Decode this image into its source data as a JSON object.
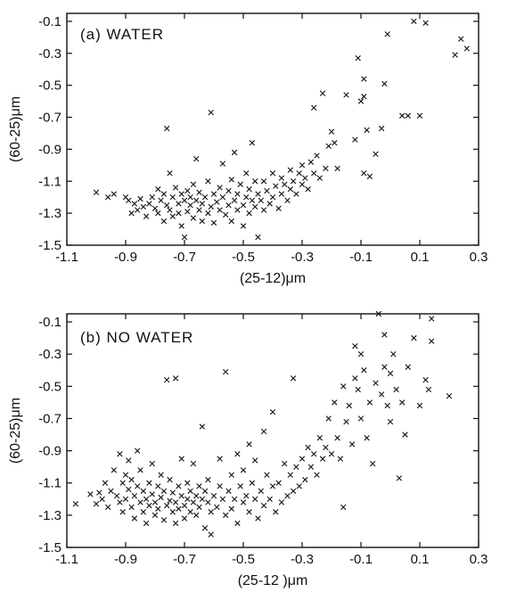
{
  "chart_data": [
    {
      "type": "scatter",
      "panel_label": "(a)  WATER",
      "xlabel": "(25-12)μm",
      "ylabel": "(60-25)μm",
      "xlim": [
        -1.1,
        0.3
      ],
      "ylim": [
        -1.5,
        -0.05
      ],
      "xticks": [
        -1.1,
        -0.9,
        -0.7,
        -0.5,
        -0.3,
        -0.1,
        0.1,
        0.3
      ],
      "xtick_labels": [
        "-1.1",
        "-0.9",
        "-0.7",
        "-0.5",
        "-0.3",
        "-0.1",
        "0.1",
        "0.3"
      ],
      "yticks": [
        -1.5,
        -1.3,
        -1.1,
        -0.9,
        -0.7,
        -0.5,
        -0.3,
        -0.1
      ],
      "ytick_labels": [
        "-1.5",
        "-1.3",
        "-1.1",
        "-0.9",
        "-0.7",
        "-0.5",
        "-0.3",
        "-0.1"
      ],
      "marker": "x",
      "grid": false,
      "points": [
        [
          -1.0,
          -1.17
        ],
        [
          -0.96,
          -1.2
        ],
        [
          -0.94,
          -1.18
        ],
        [
          -0.9,
          -1.2
        ],
        [
          -0.89,
          -1.22
        ],
        [
          -0.88,
          -1.3
        ],
        [
          -0.87,
          -1.24
        ],
        [
          -0.86,
          -1.28
        ],
        [
          -0.85,
          -1.21
        ],
        [
          -0.84,
          -1.26
        ],
        [
          -0.83,
          -1.32
        ],
        [
          -0.82,
          -1.24
        ],
        [
          -0.81,
          -1.2
        ],
        [
          -0.8,
          -1.27
        ],
        [
          -0.79,
          -1.15
        ],
        [
          -0.79,
          -1.3
        ],
        [
          -0.78,
          -1.22
        ],
        [
          -0.77,
          -1.18
        ],
        [
          -0.77,
          -1.35
        ],
        [
          -0.76,
          -1.25
        ],
        [
          -0.76,
          -0.77
        ],
        [
          -0.75,
          -1.28
        ],
        [
          -0.75,
          -1.05
        ],
        [
          -0.74,
          -1.2
        ],
        [
          -0.74,
          -1.32
        ],
        [
          -0.73,
          -1.14
        ],
        [
          -0.72,
          -1.24
        ],
        [
          -0.72,
          -1.3
        ],
        [
          -0.71,
          -1.18
        ],
        [
          -0.71,
          -1.38
        ],
        [
          -0.7,
          -1.22
        ],
        [
          -0.7,
          -1.45
        ],
        [
          -0.69,
          -1.16
        ],
        [
          -0.69,
          -1.29
        ],
        [
          -0.68,
          -1.25
        ],
        [
          -0.68,
          -1.2
        ],
        [
          -0.67,
          -1.12
        ],
        [
          -0.67,
          -1.33
        ],
        [
          -0.66,
          -1.22
        ],
        [
          -0.66,
          -0.96
        ],
        [
          -0.65,
          -1.28
        ],
        [
          -0.65,
          -1.17
        ],
        [
          -0.64,
          -1.24
        ],
        [
          -0.64,
          -1.35
        ],
        [
          -0.63,
          -1.2
        ],
        [
          -0.62,
          -1.1
        ],
        [
          -0.62,
          -1.3
        ],
        [
          -0.61,
          -1.26
        ],
        [
          -0.61,
          -0.67
        ],
        [
          -0.6,
          -1.18
        ],
        [
          -0.6,
          -1.36
        ],
        [
          -0.59,
          -1.23
        ],
        [
          -0.58,
          -1.14
        ],
        [
          -0.58,
          -1.28
        ],
        [
          -0.57,
          -1.2
        ],
        [
          -0.57,
          -0.99
        ],
        [
          -0.56,
          -1.31
        ],
        [
          -0.55,
          -1.25
        ],
        [
          -0.55,
          -1.16
        ],
        [
          -0.54,
          -1.09
        ],
        [
          -0.54,
          -1.35
        ],
        [
          -0.53,
          -1.22
        ],
        [
          -0.53,
          -0.92
        ],
        [
          -0.52,
          -1.28
        ],
        [
          -0.52,
          -1.18
        ],
        [
          -0.51,
          -1.12
        ],
        [
          -0.5,
          -1.25
        ],
        [
          -0.5,
          -1.38
        ],
        [
          -0.49,
          -1.2
        ],
        [
          -0.49,
          -1.05
        ],
        [
          -0.48,
          -1.3
        ],
        [
          -0.48,
          -1.15
        ],
        [
          -0.47,
          -1.22
        ],
        [
          -0.47,
          -0.86
        ],
        [
          -0.46,
          -1.1
        ],
        [
          -0.46,
          -1.26
        ],
        [
          -0.45,
          -1.45
        ],
        [
          -0.45,
          -1.18
        ],
        [
          -0.44,
          -1.22
        ],
        [
          -0.43,
          -1.1
        ],
        [
          -0.43,
          -1.28
        ],
        [
          -0.42,
          -1.16
        ],
        [
          -0.41,
          -1.24
        ],
        [
          -0.4,
          -1.05
        ],
        [
          -0.4,
          -1.2
        ],
        [
          -0.39,
          -1.13
        ],
        [
          -0.38,
          -1.27
        ],
        [
          -0.37,
          -1.08
        ],
        [
          -0.37,
          -1.18
        ],
        [
          -0.36,
          -1.12
        ],
        [
          -0.35,
          -1.22
        ],
        [
          -0.34,
          -1.03
        ],
        [
          -0.34,
          -1.15
        ],
        [
          -0.33,
          -1.1
        ],
        [
          -0.32,
          -1.18
        ],
        [
          -0.31,
          -1.05
        ],
        [
          -0.3,
          -1.12
        ],
        [
          -0.3,
          -1.0
        ],
        [
          -0.29,
          -1.08
        ],
        [
          -0.28,
          -1.15
        ],
        [
          -0.27,
          -0.98
        ],
        [
          -0.26,
          -1.05
        ],
        [
          -0.26,
          -0.64
        ],
        [
          -0.25,
          -0.94
        ],
        [
          -0.24,
          -1.08
        ],
        [
          -0.23,
          -0.55
        ],
        [
          -0.22,
          -1.02
        ],
        [
          -0.21,
          -0.88
        ],
        [
          -0.2,
          -0.79
        ],
        [
          -0.19,
          -0.86
        ],
        [
          -0.18,
          -1.02
        ],
        [
          -0.15,
          -0.56
        ],
        [
          -0.12,
          -0.84
        ],
        [
          -0.11,
          -0.33
        ],
        [
          -0.1,
          -0.6
        ],
        [
          -0.09,
          -0.46
        ],
        [
          -0.09,
          -0.57
        ],
        [
          -0.09,
          -1.05
        ],
        [
          -0.08,
          -0.78
        ],
        [
          -0.07,
          -1.07
        ],
        [
          -0.05,
          -0.93
        ],
        [
          -0.03,
          -0.77
        ],
        [
          -0.02,
          -0.49
        ],
        [
          -0.01,
          -0.18
        ],
        [
          0.04,
          -0.69
        ],
        [
          0.06,
          -0.69
        ],
        [
          0.08,
          -0.1
        ],
        [
          0.1,
          -0.69
        ],
        [
          0.12,
          -0.11
        ],
        [
          0.22,
          -0.31
        ],
        [
          0.24,
          -0.21
        ],
        [
          0.26,
          -0.27
        ]
      ]
    },
    {
      "type": "scatter",
      "panel_label": "(b)  NO WATER",
      "xlabel": "(25-12 )μm",
      "ylabel": "(60-25)μm",
      "xlim": [
        -1.1,
        0.3
      ],
      "ylim": [
        -1.5,
        -0.05
      ],
      "xticks": [
        -1.1,
        -0.9,
        -0.7,
        -0.5,
        -0.3,
        -0.1,
        0.1,
        0.3
      ],
      "xtick_labels": [
        "-1.1",
        "-0.9",
        "-0.7",
        "-0.5",
        "-0.3",
        "-0.1",
        "0.1",
        "0.3"
      ],
      "yticks": [
        -1.5,
        -1.3,
        -1.1,
        -0.9,
        -0.7,
        -0.5,
        -0.3,
        -0.1
      ],
      "ytick_labels": [
        "-1.5",
        "-1.3",
        "-1.1",
        "-0.9",
        "-0.7",
        "-0.5",
        "-0.3",
        "-0.1"
      ],
      "marker": "x",
      "grid": false,
      "points": [
        [
          -1.07,
          -1.23
        ],
        [
          -1.02,
          -1.17
        ],
        [
          -1.0,
          -1.23
        ],
        [
          -0.99,
          -1.16
        ],
        [
          -0.98,
          -1.2
        ],
        [
          -0.97,
          -1.1
        ],
        [
          -0.96,
          -1.25
        ],
        [
          -0.95,
          -1.15
        ],
        [
          -0.94,
          -1.02
        ],
        [
          -0.93,
          -1.18
        ],
        [
          -0.92,
          -0.92
        ],
        [
          -0.92,
          -1.22
        ],
        [
          -0.91,
          -1.1
        ],
        [
          -0.91,
          -1.28
        ],
        [
          -0.9,
          -1.05
        ],
        [
          -0.9,
          -1.2
        ],
        [
          -0.89,
          -0.96
        ],
        [
          -0.89,
          -1.14
        ],
        [
          -0.88,
          -1.25
        ],
        [
          -0.88,
          -1.08
        ],
        [
          -0.87,
          -1.18
        ],
        [
          -0.87,
          -1.32
        ],
        [
          -0.86,
          -1.12
        ],
        [
          -0.86,
          -0.9
        ],
        [
          -0.85,
          -1.22
        ],
        [
          -0.85,
          -1.02
        ],
        [
          -0.84,
          -1.28
        ],
        [
          -0.84,
          -1.15
        ],
        [
          -0.83,
          -1.2
        ],
        [
          -0.83,
          -1.35
        ],
        [
          -0.82,
          -1.1
        ],
        [
          -0.82,
          -1.24
        ],
        [
          -0.81,
          -1.17
        ],
        [
          -0.81,
          -0.98
        ],
        [
          -0.8,
          -1.3
        ],
        [
          -0.8,
          -1.22
        ],
        [
          -0.79,
          -1.12
        ],
        [
          -0.79,
          -1.26
        ],
        [
          -0.78,
          -1.19
        ],
        [
          -0.78,
          -1.05
        ],
        [
          -0.77,
          -1.33
        ],
        [
          -0.77,
          -1.15
        ],
        [
          -0.76,
          -1.24
        ],
        [
          -0.76,
          -0.46
        ],
        [
          -0.75,
          -1.21
        ],
        [
          -0.75,
          -1.08
        ],
        [
          -0.74,
          -1.28
        ],
        [
          -0.74,
          -1.16
        ],
        [
          -0.73,
          -1.22
        ],
        [
          -0.73,
          -1.35
        ],
        [
          -0.73,
          -0.45
        ],
        [
          -0.72,
          -1.12
        ],
        [
          -0.72,
          -1.26
        ],
        [
          -0.71,
          -1.18
        ],
        [
          -0.71,
          -0.95
        ],
        [
          -0.7,
          -1.24
        ],
        [
          -0.7,
          -1.32
        ],
        [
          -0.69,
          -1.1
        ],
        [
          -0.69,
          -1.2
        ],
        [
          -0.68,
          -1.28
        ],
        [
          -0.68,
          -1.15
        ],
        [
          -0.67,
          -1.22
        ],
        [
          -0.67,
          -0.98
        ],
        [
          -0.66,
          -1.3
        ],
        [
          -0.66,
          -1.18
        ],
        [
          -0.65,
          -1.12
        ],
        [
          -0.65,
          -1.25
        ],
        [
          -0.64,
          -1.2
        ],
        [
          -0.64,
          -0.75
        ],
        [
          -0.63,
          -1.38
        ],
        [
          -0.63,
          -1.15
        ],
        [
          -0.62,
          -1.22
        ],
        [
          -0.62,
          -1.08
        ],
        [
          -0.61,
          -1.28
        ],
        [
          -0.61,
          -1.42
        ],
        [
          -0.6,
          -1.18
        ],
        [
          -0.59,
          -1.25
        ],
        [
          -0.58,
          -1.12
        ],
        [
          -0.58,
          -0.95
        ],
        [
          -0.57,
          -1.2
        ],
        [
          -0.56,
          -0.41
        ],
        [
          -0.56,
          -1.3
        ],
        [
          -0.55,
          -1.15
        ],
        [
          -0.54,
          -1.05
        ],
        [
          -0.54,
          -1.26
        ],
        [
          -0.53,
          -1.2
        ],
        [
          -0.52,
          -0.92
        ],
        [
          -0.52,
          -1.35
        ],
        [
          -0.51,
          -1.12
        ],
        [
          -0.5,
          -1.22
        ],
        [
          -0.5,
          -1.02
        ],
        [
          -0.49,
          -1.18
        ],
        [
          -0.48,
          -0.86
        ],
        [
          -0.48,
          -1.28
        ],
        [
          -0.47,
          -1.1
        ],
        [
          -0.46,
          -1.2
        ],
        [
          -0.46,
          -0.96
        ],
        [
          -0.45,
          -1.32
        ],
        [
          -0.44,
          -1.15
        ],
        [
          -0.43,
          -0.78
        ],
        [
          -0.43,
          -1.24
        ],
        [
          -0.42,
          -1.05
        ],
        [
          -0.41,
          -1.2
        ],
        [
          -0.4,
          -1.12
        ],
        [
          -0.4,
          -0.66
        ],
        [
          -0.39,
          -1.28
        ],
        [
          -0.38,
          -1.1
        ],
        [
          -0.37,
          -1.22
        ],
        [
          -0.36,
          -0.98
        ],
        [
          -0.35,
          -1.18
        ],
        [
          -0.34,
          -1.05
        ],
        [
          -0.33,
          -1.15
        ],
        [
          -0.33,
          -0.45
        ],
        [
          -0.32,
          -1.0
        ],
        [
          -0.31,
          -1.12
        ],
        [
          -0.3,
          -0.95
        ],
        [
          -0.29,
          -1.08
        ],
        [
          -0.28,
          -0.88
        ],
        [
          -0.27,
          -1.0
        ],
        [
          -0.26,
          -0.92
        ],
        [
          -0.25,
          -1.05
        ],
        [
          -0.24,
          -0.82
        ],
        [
          -0.23,
          -0.95
        ],
        [
          -0.22,
          -0.88
        ],
        [
          -0.21,
          -0.7
        ],
        [
          -0.2,
          -0.92
        ],
        [
          -0.19,
          -0.6
        ],
        [
          -0.18,
          -0.82
        ],
        [
          -0.17,
          -0.95
        ],
        [
          -0.16,
          -0.5
        ],
        [
          -0.16,
          -1.25
        ],
        [
          -0.15,
          -0.72
        ],
        [
          -0.14,
          -0.62
        ],
        [
          -0.13,
          -0.86
        ],
        [
          -0.12,
          -0.45
        ],
        [
          -0.12,
          -0.25
        ],
        [
          -0.11,
          -0.52
        ],
        [
          -0.1,
          -0.3
        ],
        [
          -0.1,
          -0.7
        ],
        [
          -0.09,
          -0.4
        ],
        [
          -0.08,
          -0.82
        ],
        [
          -0.07,
          -0.6
        ],
        [
          -0.06,
          -0.98
        ],
        [
          -0.05,
          -0.48
        ],
        [
          -0.04,
          -0.05
        ],
        [
          -0.03,
          -0.55
        ],
        [
          -0.02,
          -0.18
        ],
        [
          -0.02,
          -0.38
        ],
        [
          -0.01,
          -0.62
        ],
        [
          0.0,
          -0.72
        ],
        [
          0.0,
          -0.42
        ],
        [
          0.01,
          -0.3
        ],
        [
          0.02,
          -0.52
        ],
        [
          0.03,
          -1.07
        ],
        [
          0.04,
          -0.6
        ],
        [
          0.05,
          -0.8
        ],
        [
          0.06,
          -0.38
        ],
        [
          0.08,
          -0.2
        ],
        [
          0.1,
          -0.62
        ],
        [
          0.12,
          -0.46
        ],
        [
          0.13,
          -0.52
        ],
        [
          0.14,
          -0.08
        ],
        [
          0.14,
          -0.22
        ],
        [
          0.2,
          -0.56
        ]
      ]
    }
  ]
}
